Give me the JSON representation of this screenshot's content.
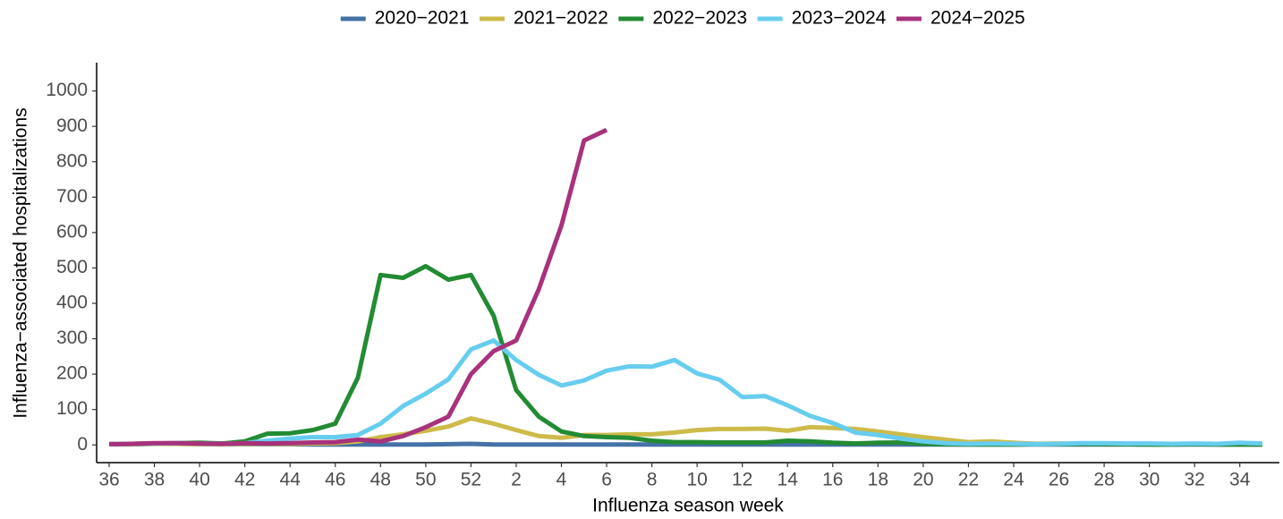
{
  "chart_data": {
    "type": "line",
    "x_label": "Influenza season week",
    "y_label": "Influenza−associated hospitalizations",
    "categories": [
      36,
      null,
      38,
      null,
      40,
      null,
      42,
      null,
      44,
      null,
      46,
      null,
      48,
      null,
      50,
      null,
      52,
      null,
      2,
      null,
      4,
      null,
      6,
      null,
      8,
      null,
      10,
      null,
      12,
      null,
      14,
      null,
      16,
      null,
      18,
      null,
      20,
      null,
      22,
      null,
      24,
      null,
      26,
      null,
      28,
      null,
      30,
      null,
      32,
      null,
      34,
      null
    ],
    "ylim": [
      -50,
      1080
    ],
    "yticks": [
      0,
      100,
      200,
      300,
      400,
      500,
      600,
      700,
      800,
      900,
      1000
    ],
    "legend": "top",
    "series": [
      {
        "name": "2020−2021",
        "color": "#4572a7",
        "values": [
          2,
          2,
          3,
          3,
          2,
          2,
          2,
          2,
          2,
          1,
          1,
          1,
          1,
          1,
          1,
          2,
          3,
          1,
          1,
          1,
          1,
          1,
          1,
          1,
          1,
          1,
          1,
          1,
          1,
          1,
          1,
          1,
          1,
          1,
          1,
          1,
          1,
          1,
          1,
          1,
          1,
          1,
          1,
          1,
          1,
          1,
          1,
          1,
          1,
          1,
          1,
          1
        ]
      },
      {
        "name": "2021−2022",
        "color": "#cdbb4a",
        "values": [
          2,
          2,
          3,
          3,
          2,
          2,
          3,
          3,
          3,
          4,
          5,
          10,
          22,
          30,
          40,
          52,
          75,
          60,
          42,
          25,
          20,
          28,
          28,
          30,
          30,
          35,
          42,
          45,
          45,
          46,
          40,
          50,
          48,
          45,
          38,
          30,
          22,
          15,
          8,
          10,
          6,
          3,
          4,
          3,
          3,
          2,
          2,
          2,
          2,
          2,
          2,
          2
        ]
      },
      {
        "name": "2022−2023",
        "color": "#238b33",
        "values": [
          2,
          3,
          4,
          5,
          6,
          4,
          10,
          32,
          33,
          42,
          60,
          190,
          480,
          472,
          505,
          467,
          480,
          365,
          155,
          80,
          38,
          25,
          22,
          20,
          12,
          8,
          8,
          7,
          7,
          7,
          12,
          10,
          6,
          4,
          6,
          7,
          3,
          2,
          1,
          1,
          1,
          2,
          2,
          3,
          2,
          2,
          1,
          1,
          2,
          1,
          1,
          1
        ]
      },
      {
        "name": "2023−2024",
        "color": "#67cdef",
        "values": [
          2,
          3,
          4,
          5,
          4,
          3,
          5,
          12,
          18,
          22,
          22,
          28,
          60,
          110,
          145,
          185,
          270,
          295,
          240,
          198,
          168,
          182,
          210,
          222,
          221,
          240,
          202,
          184,
          135,
          138,
          112,
          82,
          62,
          35,
          28,
          18,
          10,
          5,
          3,
          4,
          3,
          2,
          3,
          5,
          5,
          4,
          4,
          3,
          4,
          3,
          6,
          4
        ]
      },
      {
        "name": "2024−2025",
        "color": "#a8327c",
        "values": [
          2,
          3,
          5,
          5,
          4,
          3,
          5,
          4,
          5,
          7,
          8,
          15,
          10,
          25,
          50,
          80,
          200,
          265,
          295,
          440,
          620,
          860,
          890,
          null,
          null,
          null,
          null,
          null,
          null,
          null,
          null,
          null,
          null,
          null,
          null,
          null,
          null,
          null,
          null,
          null,
          null,
          null,
          null,
          null,
          null,
          null,
          null,
          null,
          null,
          null,
          null,
          null
        ]
      }
    ]
  }
}
